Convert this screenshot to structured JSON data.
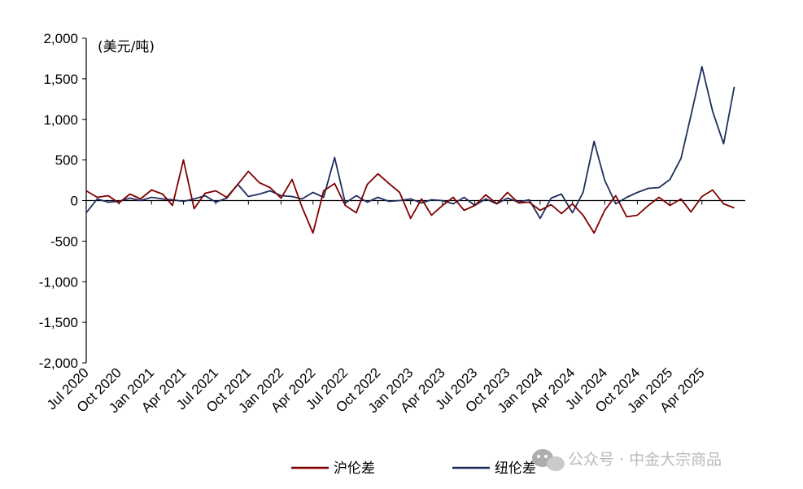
{
  "chart_data": {
    "type": "line",
    "unit_label": "(美元/吨)",
    "y_ticks": [
      "2,000",
      "1,500",
      "1,000",
      "500",
      "0",
      "-500",
      "-1,000",
      "-1,500",
      "-2,000"
    ],
    "ylim": [
      -2000,
      2000
    ],
    "x_ticks": [
      "Jul 2020",
      "Oct 2020",
      "Jan 2021",
      "Apr 2021",
      "Jul 2021",
      "Oct 2021",
      "Jan 2022",
      "Apr 2022",
      "Jul 2022",
      "Oct 2022",
      "Jan 2023",
      "Apr 2023",
      "Jul 2023",
      "Oct 2023",
      "Jan 2024",
      "Apr 2024",
      "Jul 2024",
      "Oct 2024",
      "Jan 2025",
      "Apr 2025"
    ],
    "x_tick_dates": [
      "2020-07-01",
      "2020-10-01",
      "2021-01-01",
      "2021-04-01",
      "2021-07-01",
      "2021-10-01",
      "2022-01-01",
      "2022-04-01",
      "2022-07-01",
      "2022-10-01",
      "2023-01-01",
      "2023-04-01",
      "2023-07-01",
      "2023-10-01",
      "2024-01-01",
      "2024-04-01",
      "2024-07-01",
      "2024-10-01",
      "2025-01-01",
      "2025-04-01"
    ],
    "xlim": [
      "2020-07-01",
      "2025-08-01"
    ],
    "grid": false,
    "legend_position": "bottom-center",
    "series": [
      {
        "name": "沪伦差",
        "color": "#7f0000",
        "x": [
          "2020-07-01",
          "2020-08-01",
          "2020-09-01",
          "2020-10-01",
          "2020-11-01",
          "2020-12-01",
          "2021-01-01",
          "2021-02-01",
          "2021-03-01",
          "2021-04-01",
          "2021-05-01",
          "2021-06-01",
          "2021-07-01",
          "2021-08-01",
          "2021-09-01",
          "2021-10-01",
          "2021-11-01",
          "2021-12-01",
          "2022-01-01",
          "2022-02-01",
          "2022-03-01",
          "2022-04-01",
          "2022-05-01",
          "2022-06-01",
          "2022-07-01",
          "2022-08-01",
          "2022-09-01",
          "2022-10-01",
          "2022-11-01",
          "2022-12-01",
          "2023-01-01",
          "2023-02-01",
          "2023-03-01",
          "2023-04-01",
          "2023-05-01",
          "2023-06-01",
          "2023-07-01",
          "2023-08-01",
          "2023-09-01",
          "2023-10-01",
          "2023-11-01",
          "2023-12-01",
          "2024-01-01",
          "2024-02-01",
          "2024-03-01",
          "2024-04-01",
          "2024-05-01",
          "2024-06-01",
          "2024-07-01",
          "2024-08-01",
          "2024-09-01",
          "2024-10-01",
          "2024-11-01",
          "2024-12-01",
          "2025-01-01",
          "2025-02-01",
          "2025-03-01",
          "2025-04-01",
          "2025-05-01",
          "2025-06-01",
          "2025-07-01"
        ],
        "y": [
          120,
          40,
          60,
          -30,
          80,
          20,
          130,
          80,
          -60,
          500,
          -100,
          90,
          120,
          40,
          200,
          360,
          220,
          160,
          30,
          260,
          -80,
          -400,
          120,
          210,
          -60,
          -150,
          200,
          330,
          210,
          100,
          -220,
          20,
          -180,
          -60,
          40,
          -120,
          -60,
          70,
          -40,
          100,
          -30,
          -20,
          -120,
          -50,
          -160,
          -40,
          -180,
          -400,
          -120,
          60,
          -200,
          -180,
          -60,
          40,
          -60,
          20,
          -140,
          50,
          130,
          -40,
          -90
        ]
      },
      {
        "name": "纽伦差",
        "color": "#1f2f5f",
        "x": [
          "2020-07-01",
          "2020-08-01",
          "2020-09-01",
          "2020-10-01",
          "2020-11-01",
          "2020-12-01",
          "2021-01-01",
          "2021-02-01",
          "2021-03-01",
          "2021-04-01",
          "2021-05-01",
          "2021-06-01",
          "2021-07-01",
          "2021-08-01",
          "2021-09-01",
          "2021-10-01",
          "2021-11-01",
          "2021-12-01",
          "2022-01-01",
          "2022-02-01",
          "2022-03-01",
          "2022-04-01",
          "2022-05-01",
          "2022-06-01",
          "2022-07-01",
          "2022-08-01",
          "2022-09-01",
          "2022-10-01",
          "2022-11-01",
          "2022-12-01",
          "2023-01-01",
          "2023-02-01",
          "2023-03-01",
          "2023-04-01",
          "2023-05-01",
          "2023-06-01",
          "2023-07-01",
          "2023-08-01",
          "2023-09-01",
          "2023-10-01",
          "2023-11-01",
          "2023-12-01",
          "2024-01-01",
          "2024-02-01",
          "2024-03-01",
          "2024-04-01",
          "2024-05-01",
          "2024-06-01",
          "2024-07-01",
          "2024-08-01",
          "2024-09-01",
          "2024-10-01",
          "2024-11-01",
          "2024-12-01",
          "2025-01-01",
          "2025-02-01",
          "2025-03-01",
          "2025-04-01",
          "2025-05-01",
          "2025-06-01",
          "2025-07-01"
        ],
        "y": [
          -150,
          20,
          -20,
          -10,
          30,
          0,
          40,
          20,
          10,
          -10,
          20,
          60,
          -20,
          30,
          200,
          50,
          80,
          120,
          60,
          50,
          20,
          100,
          40,
          530,
          -30,
          60,
          -20,
          40,
          -10,
          0,
          20,
          -30,
          10,
          0,
          -40,
          40,
          -60,
          20,
          -40,
          30,
          -20,
          10,
          -220,
          30,
          80,
          -150,
          100,
          730,
          250,
          -40,
          40,
          100,
          150,
          160,
          260,
          520,
          1050,
          1650,
          1100,
          700,
          1400
        ]
      }
    ]
  },
  "legend": {
    "items": [
      {
        "label": "沪伦差",
        "color": "#7f0000"
      },
      {
        "label": "纽伦差",
        "color": "#1f2f5f"
      }
    ]
  },
  "watermark": {
    "text": "公众号 · 中金大宗商品"
  }
}
